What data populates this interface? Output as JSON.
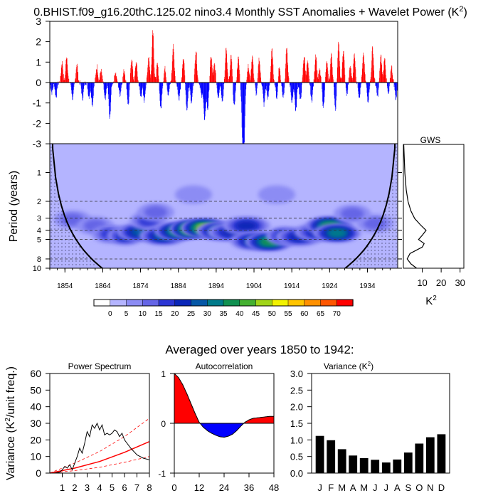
{
  "title": "0.BHIST.f09_g16.20thC.125.02 nino3.4 Monthly SST Anomalies + Wavelet Power (K",
  "title_sup": "2",
  "title_end": ")",
  "averaged_title": "Averaged over years 1850 to 1942:",
  "chart_data": [
    {
      "type": "bar",
      "name": "sst-anomaly",
      "xlim": [
        1850,
        1942
      ],
      "ylim": [
        -3,
        3
      ],
      "yticks": [
        "3",
        "2",
        "1",
        "0",
        "-1",
        "-2",
        "-3"
      ],
      "positive_color": "#ff0000",
      "negative_color": "#0000ff",
      "events": [
        {
          "x": 1850.5,
          "y": -0.5
        },
        {
          "x": 1851.6,
          "y": -0.7
        },
        {
          "x": 1853.2,
          "y": 1.0
        },
        {
          "x": 1854.4,
          "y": 1.3
        },
        {
          "x": 1856.0,
          "y": -0.8
        },
        {
          "x": 1857.1,
          "y": 0.9
        },
        {
          "x": 1858.6,
          "y": -0.8
        },
        {
          "x": 1860.3,
          "y": -0.7
        },
        {
          "x": 1861.2,
          "y": -1.1
        },
        {
          "x": 1862.4,
          "y": 0.8
        },
        {
          "x": 1863.5,
          "y": 0.6
        },
        {
          "x": 1864.6,
          "y": -0.9
        },
        {
          "x": 1865.8,
          "y": -1.8
        },
        {
          "x": 1867.3,
          "y": 0.5
        },
        {
          "x": 1868.5,
          "y": -0.6
        },
        {
          "x": 1869.6,
          "y": 0.6
        },
        {
          "x": 1870.7,
          "y": -1.1
        },
        {
          "x": 1871.6,
          "y": 1.2
        },
        {
          "x": 1872.8,
          "y": 1.0
        },
        {
          "x": 1874.0,
          "y": -0.7
        },
        {
          "x": 1874.9,
          "y": -0.9
        },
        {
          "x": 1876.1,
          "y": 1.3
        },
        {
          "x": 1877.2,
          "y": 2.6
        },
        {
          "x": 1878.4,
          "y": 0.9
        },
        {
          "x": 1879.3,
          "y": -1.3
        },
        {
          "x": 1880.4,
          "y": 0.7
        },
        {
          "x": 1881.3,
          "y": -0.6
        },
        {
          "x": 1882.6,
          "y": 1.8
        },
        {
          "x": 1884.1,
          "y": -0.8
        },
        {
          "x": 1885.3,
          "y": 1.2
        },
        {
          "x": 1886.2,
          "y": -1.4
        },
        {
          "x": 1887.4,
          "y": -1.0
        },
        {
          "x": 1888.6,
          "y": 1.6
        },
        {
          "x": 1890.1,
          "y": -0.7
        },
        {
          "x": 1890.9,
          "y": -1.9
        },
        {
          "x": 1891.7,
          "y": -1.3
        },
        {
          "x": 1892.6,
          "y": 1.3
        },
        {
          "x": 1893.5,
          "y": 0.9
        },
        {
          "x": 1894.5,
          "y": -0.7
        },
        {
          "x": 1895.6,
          "y": -0.9
        },
        {
          "x": 1896.6,
          "y": 1.7
        },
        {
          "x": 1897.9,
          "y": 1.3
        },
        {
          "x": 1898.7,
          "y": -1.2
        },
        {
          "x": 1899.8,
          "y": 1.2
        },
        {
          "x": 1900.9,
          "y": -2.2
        },
        {
          "x": 1901.3,
          "y": -3.0
        },
        {
          "x": 1902.4,
          "y": 0.8
        },
        {
          "x": 1903.5,
          "y": 1.3
        },
        {
          "x": 1904.6,
          "y": -0.6
        },
        {
          "x": 1905.3,
          "y": 1.2
        },
        {
          "x": 1906.6,
          "y": -1.1
        },
        {
          "x": 1907.6,
          "y": -0.8
        },
        {
          "x": 1908.7,
          "y": 1.6
        },
        {
          "x": 1910.0,
          "y": -0.8
        },
        {
          "x": 1910.6,
          "y": 0.8
        },
        {
          "x": 1911.7,
          "y": -0.7
        },
        {
          "x": 1912.6,
          "y": 1.7
        },
        {
          "x": 1914.0,
          "y": -1.0
        },
        {
          "x": 1915.0,
          "y": -1.4
        },
        {
          "x": 1916.2,
          "y": -0.9
        },
        {
          "x": 1917.2,
          "y": 1.3
        },
        {
          "x": 1918.1,
          "y": 1.0
        },
        {
          "x": 1919.2,
          "y": -0.9
        },
        {
          "x": 1920.3,
          "y": 1.4
        },
        {
          "x": 1921.3,
          "y": 0.6
        },
        {
          "x": 1922.3,
          "y": -1.2
        },
        {
          "x": 1923.2,
          "y": 1.0
        },
        {
          "x": 1924.4,
          "y": 1.4
        },
        {
          "x": 1925.5,
          "y": -1.3
        },
        {
          "x": 1926.3,
          "y": 2.0
        },
        {
          "x": 1927.6,
          "y": 1.6
        },
        {
          "x": 1928.5,
          "y": -0.6
        },
        {
          "x": 1929.4,
          "y": 0.8
        },
        {
          "x": 1930.5,
          "y": 1.4
        },
        {
          "x": 1931.8,
          "y": -0.7
        },
        {
          "x": 1932.9,
          "y": 1.4
        },
        {
          "x": 1934.1,
          "y": -0.9
        },
        {
          "x": 1935.3,
          "y": 1.7
        },
        {
          "x": 1936.6,
          "y": -0.7
        },
        {
          "x": 1937.5,
          "y": 1.3
        },
        {
          "x": 1938.5,
          "y": 1.2
        },
        {
          "x": 1939.5,
          "y": -0.6
        },
        {
          "x": 1940.3,
          "y": 0.8
        },
        {
          "x": 1941.5,
          "y": -0.8
        }
      ]
    },
    {
      "type": "heatmap",
      "name": "wavelet-power",
      "ylabel": "Period (years)",
      "xlim": [
        1850,
        1942
      ],
      "ylim": [
        0.5,
        10
      ],
      "xticks": [
        "1854",
        "1864",
        "1874",
        "1884",
        "1894",
        "1904",
        "1914",
        "1924",
        "1934"
      ],
      "yticks": [
        "1",
        "2",
        "3",
        "4",
        "5",
        "8",
        "10"
      ],
      "dashed_periods": [
        2,
        3,
        4,
        5,
        8
      ],
      "colorbar": {
        "labels": [
          "0",
          "5",
          "10",
          "15",
          "20",
          "25",
          "30",
          "35",
          "40",
          "45",
          "50",
          "55",
          "60",
          "65",
          "70"
        ],
        "colors": [
          "#ffffff",
          "#b4b4ff",
          "#8c8cf4",
          "#6565e6",
          "#2c36d4",
          "#0a26b8",
          "#0557a6",
          "#007a8a",
          "#109050",
          "#44b030",
          "#a0d419",
          "#f2f200",
          "#ffc400",
          "#ff9000",
          "#ff5600",
          "#ff0000"
        ]
      },
      "blobs": [
        {
          "x": 1856,
          "p": 3.1,
          "v": 10
        },
        {
          "x": 1862,
          "p": 3.6,
          "v": 12
        },
        {
          "x": 1866,
          "p": 4.4,
          "v": 15
        },
        {
          "x": 1870,
          "p": 4.6,
          "v": 20
        },
        {
          "x": 1874,
          "p": 4.2,
          "v": 25
        },
        {
          "x": 1876,
          "p": 3.2,
          "v": 17
        },
        {
          "x": 1880,
          "p": 4.6,
          "v": 28
        },
        {
          "x": 1884,
          "p": 4.1,
          "v": 38
        },
        {
          "x": 1888,
          "p": 3.9,
          "v": 52
        },
        {
          "x": 1891,
          "p": 3.8,
          "v": 45
        },
        {
          "x": 1895,
          "p": 4.1,
          "v": 30
        },
        {
          "x": 1898,
          "p": 4.2,
          "v": 24
        },
        {
          "x": 1902,
          "p": 3.6,
          "v": 22
        },
        {
          "x": 1904,
          "p": 5.2,
          "v": 26
        },
        {
          "x": 1908,
          "p": 5.3,
          "v": 35
        },
        {
          "x": 1912,
          "p": 4.6,
          "v": 20
        },
        {
          "x": 1916,
          "p": 4.7,
          "v": 24
        },
        {
          "x": 1921,
          "p": 4.2,
          "v": 22
        },
        {
          "x": 1924,
          "p": 3.6,
          "v": 38
        },
        {
          "x": 1926,
          "p": 4.3,
          "v": 30
        },
        {
          "x": 1936,
          "p": 3.4,
          "v": 10
        },
        {
          "x": 1888,
          "p": 1.7,
          "v": 8
        },
        {
          "x": 1910,
          "p": 1.7,
          "v": 7
        },
        {
          "x": 1878,
          "p": 2.6,
          "v": 12
        },
        {
          "x": 1930,
          "p": 2.7,
          "v": 10
        }
      ]
    },
    {
      "type": "line",
      "name": "gws",
      "title": "GWS",
      "xlabel": "K",
      "xlabel_sup": "2",
      "xticks": [
        "10",
        "20",
        "30"
      ],
      "xlim": [
        0,
        32
      ],
      "period": [
        0.5,
        1,
        1.5,
        2,
        2.5,
        3,
        3.5,
        4,
        4.5,
        5,
        5.5,
        6,
        7,
        8,
        9,
        10
      ],
      "power": [
        0.2,
        0.8,
        1.5,
        2.5,
        4.0,
        6.0,
        9.0,
        12.0,
        10.0,
        8.0,
        11.0,
        10.0,
        3.5,
        2.0,
        4.0,
        7.0
      ]
    },
    {
      "type": "line",
      "name": "power-spectrum",
      "title": "Power Spectrum",
      "ylabel": "Variance (K",
      "ylabel_sup": "2",
      "ylabel_end": "/unit freq.)",
      "ylim": [
        0,
        60
      ],
      "xlim": [
        0,
        8
      ],
      "yticks": [
        "0",
        "10",
        "20",
        "30",
        "40",
        "50",
        "60"
      ],
      "xticks": [
        "1",
        "2",
        "3",
        "4",
        "5",
        "6",
        "7",
        "8"
      ],
      "x": [
        0.4,
        0.8,
        1.0,
        1.2,
        1.4,
        1.6,
        1.8,
        2.0,
        2.2,
        2.4,
        2.6,
        2.8,
        3.0,
        3.2,
        3.4,
        3.6,
        3.8,
        4.0,
        4.2,
        4.4,
        4.6,
        4.8,
        5.0,
        5.2,
        5.4,
        5.6,
        5.8,
        6.0,
        6.2,
        6.5,
        7.0,
        7.5,
        8.0
      ],
      "y": [
        0,
        0.5,
        2,
        4,
        3,
        5,
        2,
        6,
        10,
        15,
        12,
        18,
        25,
        22,
        29,
        27,
        30,
        26,
        29,
        23,
        24,
        23,
        24,
        26,
        25,
        22,
        24,
        20,
        18,
        15,
        11,
        9,
        8
      ],
      "red_solid": [
        [
          0,
          0
        ],
        [
          2,
          3
        ],
        [
          4,
          7
        ],
        [
          6,
          12.5
        ],
        [
          8,
          19
        ]
      ],
      "red_upper": [
        [
          0,
          0
        ],
        [
          2,
          6
        ],
        [
          4,
          13
        ],
        [
          6,
          22
        ],
        [
          8,
          33
        ]
      ],
      "red_lower": [
        [
          0,
          0
        ],
        [
          2,
          1.5
        ],
        [
          4,
          3.5
        ],
        [
          6,
          6.5
        ],
        [
          8,
          10
        ]
      ]
    },
    {
      "type": "area",
      "name": "autocorrelation",
      "title": "Autocorrelation",
      "ylim": [
        -1,
        1
      ],
      "xlim": [
        0,
        48
      ],
      "yticks": [
        "1",
        "0",
        "-1"
      ],
      "xticks": [
        "0",
        "12",
        "24",
        "36",
        "48"
      ],
      "x": [
        0,
        2,
        4,
        6,
        8,
        10,
        12,
        14,
        16,
        18,
        20,
        22,
        24,
        26,
        28,
        30,
        32,
        34,
        36,
        38,
        40,
        42,
        44,
        46,
        48
      ],
      "y": [
        1.0,
        0.92,
        0.78,
        0.6,
        0.4,
        0.2,
        0.02,
        -0.08,
        -0.15,
        -0.2,
        -0.24,
        -0.27,
        -0.28,
        -0.26,
        -0.22,
        -0.15,
        -0.06,
        0.02,
        0.07,
        0.1,
        0.11,
        0.12,
        0.13,
        0.14,
        0.14
      ]
    },
    {
      "type": "bar",
      "name": "seasonal-variance",
      "title": "Variance (K",
      "title_sup": "2",
      "title_end": ")",
      "ylim": [
        0,
        3.0
      ],
      "yticks": [
        "0.0",
        "0.5",
        "1.0",
        "1.5",
        "2.0",
        "2.5",
        "3.0"
      ],
      "categories": [
        "J",
        "F",
        "M",
        "A",
        "M",
        "J",
        "J",
        "A",
        "S",
        "O",
        "N",
        "D"
      ],
      "values": [
        1.12,
        0.99,
        0.72,
        0.53,
        0.45,
        0.4,
        0.32,
        0.41,
        0.62,
        0.89,
        1.08,
        1.17
      ]
    }
  ]
}
